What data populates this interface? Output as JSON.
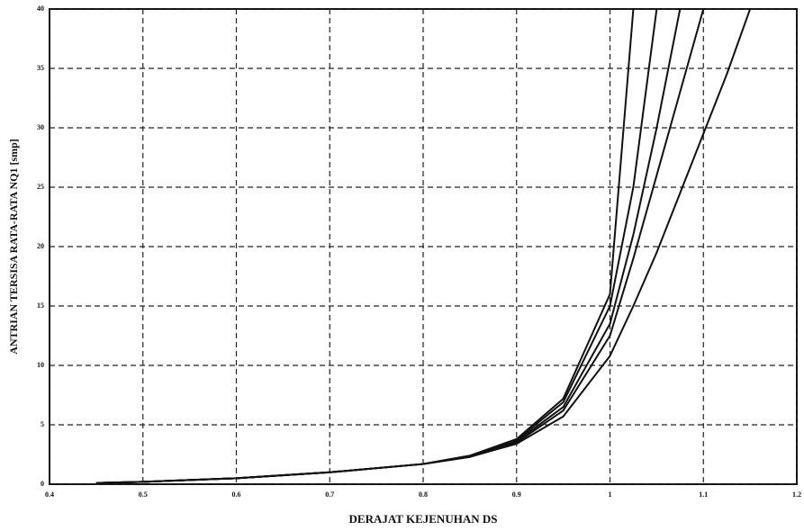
{
  "chart_data": {
    "type": "line",
    "x_label": "DERAJAT KEJENUHAN DS",
    "y_label": "ANTRIAN TERSISA RATA-RATA NQ1 [smp]",
    "x": [
      0.45,
      0.5,
      0.6,
      0.7,
      0.8,
      0.85,
      0.9,
      0.95,
      1.0,
      1.025,
      1.05,
      1.075,
      1.1,
      1.125,
      1.15
    ],
    "series": [
      {
        "color": "#111111",
        "values": [
          0.1,
          0.2,
          0.5,
          1.0,
          1.7,
          2.4,
          3.8,
          7.2,
          16,
          40,
          null,
          null,
          null,
          null,
          null
        ]
      },
      {
        "color": "#111111",
        "values": [
          0.1,
          0.2,
          0.5,
          1.0,
          1.7,
          2.4,
          3.7,
          6.9,
          15,
          25,
          40,
          null,
          null,
          null,
          null
        ]
      },
      {
        "color": "#111111",
        "values": [
          0.1,
          0.2,
          0.5,
          1.0,
          1.7,
          2.3,
          3.6,
          6.5,
          13.5,
          21,
          30,
          40,
          null,
          null,
          null
        ]
      },
      {
        "color": "#111111",
        "values": [
          0.1,
          0.2,
          0.5,
          1.0,
          1.7,
          2.3,
          3.5,
          6.2,
          12.5,
          19,
          26,
          33,
          40,
          null,
          null
        ]
      },
      {
        "color": "#111111",
        "values": [
          0.1,
          0.2,
          0.5,
          1.0,
          1.7,
          2.3,
          3.4,
          5.7,
          10.8,
          15,
          19.5,
          24.5,
          29.5,
          34.5,
          40
        ]
      }
    ],
    "xlim": [
      0.4,
      1.2
    ],
    "xticks": [
      0.4,
      0.5,
      0.6,
      0.7,
      0.8,
      0.9,
      1.0,
      1.1,
      1.2
    ],
    "ylim": [
      0,
      40
    ],
    "yticks": [
      0,
      5,
      10,
      15,
      20,
      25,
      30,
      35,
      40
    ],
    "grid": true
  }
}
